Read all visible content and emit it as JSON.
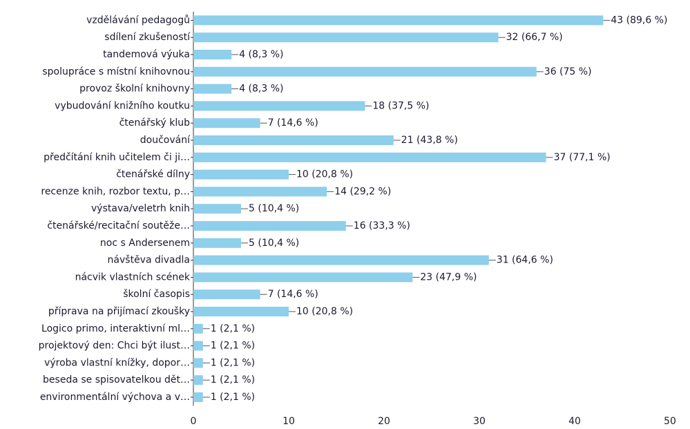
{
  "chart_data": {
    "type": "bar",
    "orientation": "horizontal",
    "categories": [
      "vzdělávání pedagogů",
      "sdílení zkušeností",
      "tandemová výuka",
      "spolupráce s místní knihovnou",
      "provoz školní knihovny",
      "vybudování knižního koutku",
      "čtenářský klub",
      "doučování",
      "předčítání knih učitelem či ji…",
      "čtenářské dílny",
      "recenze knih, rozbor textu, p…",
      "výstava/veletrh knih",
      "čtenářské/recitační soutěže…",
      "noc s Andersenem",
      "návštěva divadla",
      "nácvik vlastních scének",
      "školní časopis",
      "příprava na přijímací zkoušky",
      "Logico primo, interaktivní ml…",
      "projektový den: Chci být ilust…",
      "výroba vlastní knížky, dopor…",
      "beseda se spisovatelkou dět…",
      "environmentální výchova a v…"
    ],
    "values": [
      43,
      32,
      4,
      36,
      4,
      18,
      7,
      21,
      37,
      10,
      14,
      5,
      16,
      5,
      31,
      23,
      7,
      10,
      1,
      1,
      1,
      1,
      1
    ],
    "value_labels": [
      "43 (89,6 %)",
      "32 (66,7 %)",
      "4 (8,3 %)",
      "36 (75 %)",
      "4 (8,3 %)",
      "18 (37,5 %)",
      "7 (14,6 %)",
      "21 (43,8 %)",
      "37 (77,1 %)",
      "10 (20,8 %)",
      "14 (29,2 %)",
      "5 (10,4 %)",
      "16 (33,3 %)",
      "5 (10,4 %)",
      "31 (64,6 %)",
      "23 (47,9 %)",
      "7 (14,6 %)",
      "10 (20,8 %)",
      "1 (2,1 %)",
      "1 (2,1 %)",
      "1 (2,1 %)",
      "1 (2,1 %)",
      "1 (2,1 %)"
    ],
    "color": "#8ecfeb",
    "xlim": [
      0,
      50
    ],
    "xticks": [
      0,
      10,
      20,
      30,
      40,
      50
    ]
  }
}
